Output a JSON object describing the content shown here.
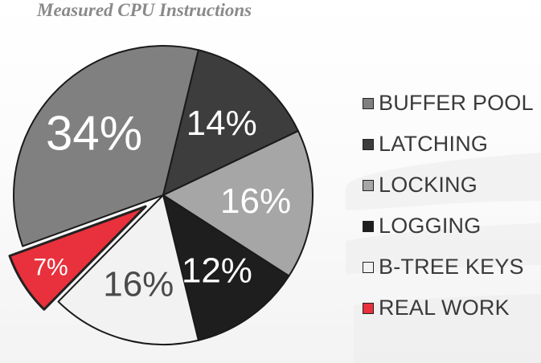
{
  "chart_data": {
    "type": "pie",
    "title": "Measured CPU Instructions",
    "slices": [
      {
        "label": "BUFFER POOL",
        "value": 34,
        "display": "34%",
        "color": "#808080",
        "label_color": "#ffffff"
      },
      {
        "label": "LATCHING",
        "value": 14,
        "display": "14%",
        "color": "#3d3d3d",
        "label_color": "#ffffff"
      },
      {
        "label": "LOCKING",
        "value": 16,
        "display": "16%",
        "color": "#a6a6a6",
        "label_color": "#ffffff"
      },
      {
        "label": "LOGGING",
        "value": 12,
        "display": "12%",
        "color": "#1e1e1e",
        "label_color": "#ffffff"
      },
      {
        "label": "B-TREE KEYS",
        "value": 16,
        "display": "16%",
        "color": "#f2f2f2",
        "label_color": "#4a4a4a"
      },
      {
        "label": "REAL WORK",
        "value": 7,
        "display": "7%",
        "color": "#e8313c",
        "label_color": "#ffffff",
        "exploded": true
      }
    ],
    "legend": {
      "position": "right",
      "items": [
        {
          "label": "BUFFER POOL",
          "color": "#808080"
        },
        {
          "label": "LATCHING",
          "color": "#3d3d3d"
        },
        {
          "label": "LOCKING",
          "color": "#a6a6a6"
        },
        {
          "label": "LOGGING",
          "color": "#1e1e1e"
        },
        {
          "label": "B-TREE KEYS",
          "color": "#f2f2f2"
        },
        {
          "label": "REAL WORK",
          "color": "#e8313c"
        }
      ]
    }
  }
}
